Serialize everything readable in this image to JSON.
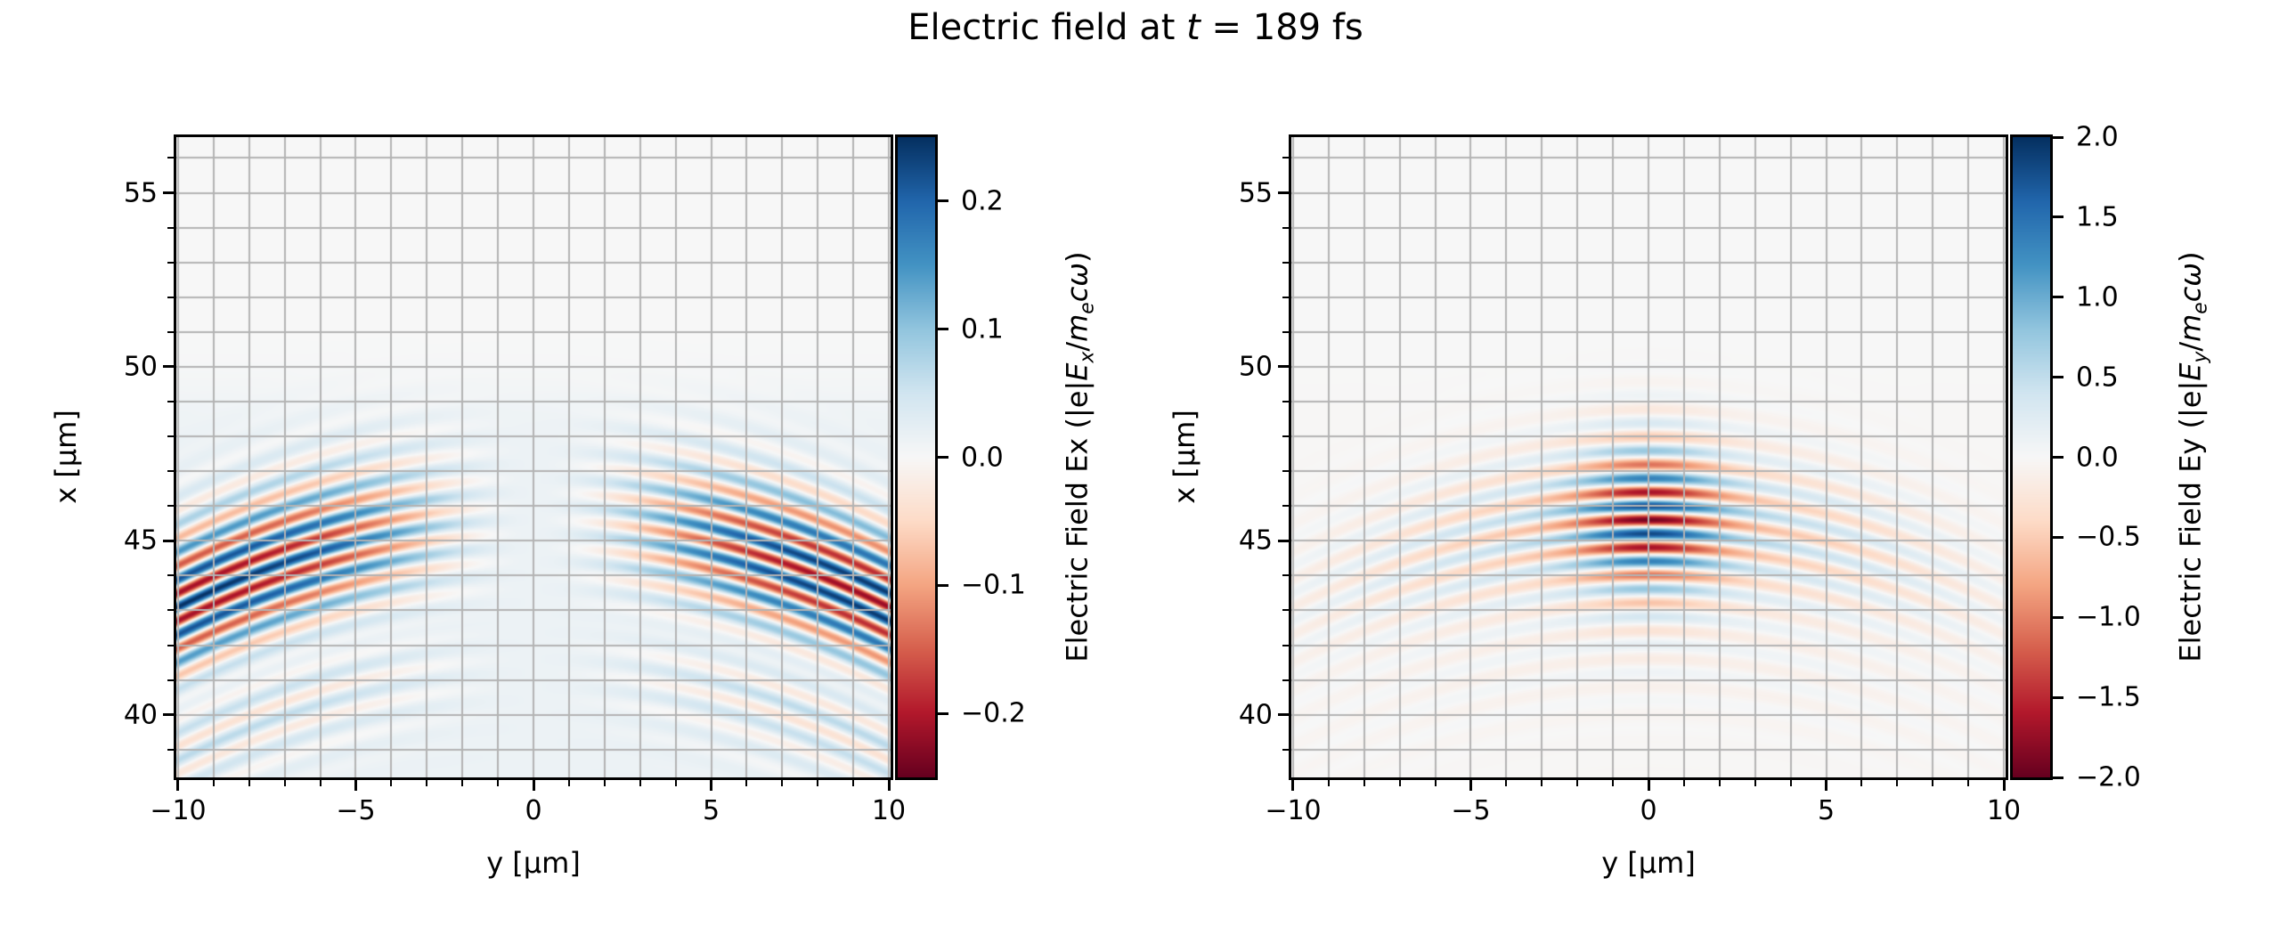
{
  "figure": {
    "title_parts": [
      {
        "text": "Electric field at "
      },
      {
        "text": "t",
        "italic": true
      },
      {
        "text": " = 189 fs"
      }
    ],
    "background_color": "#ffffff",
    "text_color": "#000000",
    "grid_color": "#b3b3b3",
    "frame_color": "#000000",
    "colormap_name": "RdBu",
    "colormap_rdbu": [
      "#67001f",
      "#b2182b",
      "#d6604d",
      "#f4a582",
      "#fddbc7",
      "#f7f7f7",
      "#d1e5f0",
      "#92c5de",
      "#4393c3",
      "#2166ac",
      "#053061"
    ]
  },
  "panels": [
    {
      "name": "Ex",
      "xlabel": "y [µm]",
      "ylabel": "x [µm]",
      "x_ticks": [
        {
          "v": -10,
          "label": "−10"
        },
        {
          "v": -5,
          "label": "−5"
        },
        {
          "v": 0,
          "label": "0"
        },
        {
          "v": 5,
          "label": "5"
        },
        {
          "v": 10,
          "label": "10"
        }
      ],
      "y_ticks": [
        {
          "v": 55,
          "label": "55"
        },
        {
          "v": 50,
          "label": "50"
        },
        {
          "v": 45,
          "label": "45"
        },
        {
          "v": 40,
          "label": "40"
        }
      ],
      "colorbar": {
        "ticks": [
          {
            "v": 0.2,
            "label": "0.2"
          },
          {
            "v": 0.1,
            "label": "0.1"
          },
          {
            "v": 0.0,
            "label": "0.0"
          },
          {
            "v": -0.1,
            "label": "−0.1"
          },
          {
            "v": -0.2,
            "label": "−0.2"
          }
        ],
        "label_parts": [
          {
            "text": "Electric Field Ex (|e|"
          },
          {
            "text": "E",
            "italic": true
          },
          {
            "text": "x",
            "italic": true,
            "sub": true
          },
          {
            "text": "/"
          },
          {
            "text": "m",
            "italic": true
          },
          {
            "text": "e",
            "italic": true,
            "sub": true
          },
          {
            "text": "c",
            "italic": true
          },
          {
            "text": "ω",
            "italic": true
          },
          {
            "text": ")"
          }
        ]
      }
    },
    {
      "name": "Ey",
      "xlabel": "y [µm]",
      "ylabel": "x [µm]",
      "x_ticks": [
        {
          "v": -10,
          "label": "−10"
        },
        {
          "v": -5,
          "label": "−5"
        },
        {
          "v": 0,
          "label": "0"
        },
        {
          "v": 5,
          "label": "5"
        },
        {
          "v": 10,
          "label": "10"
        }
      ],
      "y_ticks": [
        {
          "v": 55,
          "label": "55"
        },
        {
          "v": 50,
          "label": "50"
        },
        {
          "v": 45,
          "label": "45"
        },
        {
          "v": 40,
          "label": "40"
        }
      ],
      "colorbar": {
        "ticks": [
          {
            "v": 2.0,
            "label": "2.0"
          },
          {
            "v": 1.5,
            "label": "1.5"
          },
          {
            "v": 1.0,
            "label": "1.0"
          },
          {
            "v": 0.5,
            "label": "0.5"
          },
          {
            "v": 0.0,
            "label": "0.0"
          },
          {
            "v": -0.5,
            "label": "−0.5"
          },
          {
            "v": -1.0,
            "label": "−1.0"
          },
          {
            "v": -1.5,
            "label": "−1.5"
          },
          {
            "v": -2.0,
            "label": "−2.0"
          }
        ],
        "label_parts": [
          {
            "text": "Electric Field Ey (|e|"
          },
          {
            "text": "E",
            "italic": true
          },
          {
            "text": "y",
            "italic": true,
            "sub": true
          },
          {
            "text": "/"
          },
          {
            "text": "m",
            "italic": true
          },
          {
            "text": "e",
            "italic": true,
            "sub": true
          },
          {
            "text": "c",
            "italic": true
          },
          {
            "text": "ω",
            "italic": true
          },
          {
            "text": ")"
          }
        ]
      }
    }
  ],
  "chart_data": [
    {
      "type": "heatmap",
      "title": "Electric field at t = 189 fs",
      "component": "Ex",
      "xlabel": "y [µm]",
      "ylabel": "x [µm]",
      "xlim": [
        -10.05,
        10.05
      ],
      "ylim": [
        38.2,
        56.6
      ],
      "x_major_ticks": [
        -10,
        -5,
        0,
        5,
        10
      ],
      "y_major_ticks": [
        40,
        45,
        50,
        55
      ],
      "minor_tick_step_um": 1,
      "grid": "both axes, 1 µm spacing, gray, drawn above data",
      "colormap": "RdBu",
      "vmin": -0.25,
      "vmax": 0.25,
      "colorbar_tick_values": [
        0.2,
        0.1,
        0.0,
        -0.1,
        -0.2
      ],
      "field_model": {
        "kind": "ex",
        "description": "transverse-gradient field of focused laser pulse; antisymmetric lobes at y≈±6..10 µm, zero on axis, stripes tilted by wavefront curvature",
        "wavelength": 0.8,
        "pulse_center": 45.6,
        "pulse_length": 2.1,
        "curvature_R": 20,
        "amplitude": 0.235,
        "lobe_w2": 20,
        "secondary_center": 41.6,
        "secondary_length": 1.6,
        "secondary_amp": 0.25,
        "tint": 0.03,
        "tint_edge": 49.2
      }
    },
    {
      "type": "heatmap",
      "title": "Electric field at t = 189 fs",
      "component": "Ey",
      "xlabel": "y [µm]",
      "ylabel": "x [µm]",
      "xlim": [
        -10.05,
        10.05
      ],
      "ylim": [
        38.2,
        56.6
      ],
      "x_major_ticks": [
        -10,
        -5,
        0,
        5,
        10
      ],
      "y_major_ticks": [
        40,
        45,
        50,
        55
      ],
      "minor_tick_step_um": 1,
      "grid": "both axes, 1 µm spacing, gray, drawn above data",
      "colormap": "RdBu",
      "vmin": -2.0,
      "vmax": 2.0,
      "colorbar_tick_values": [
        2.0,
        1.5,
        1.0,
        0.5,
        0.0,
        -0.5,
        -1.0,
        -1.5,
        -2.0
      ],
      "field_model": {
        "kind": "ey",
        "description": "main transverse laser field; strong striped Gaussian blob centered at y=0, x≈45.6 µm, weak curved wings fanning to panel edges",
        "wavelength": 0.8,
        "pulse_center": 45.6,
        "pulse_length": 2.1,
        "curvature_R": 20,
        "amplitude": 1.9,
        "waist": 2.1,
        "wing_amp": 0.4,
        "wing_w2": 55,
        "secondary_center": 41.6,
        "secondary_length": 1.6,
        "secondary_amp": 0.15,
        "tint": -0.005,
        "tint_edge": 49.2
      }
    }
  ]
}
